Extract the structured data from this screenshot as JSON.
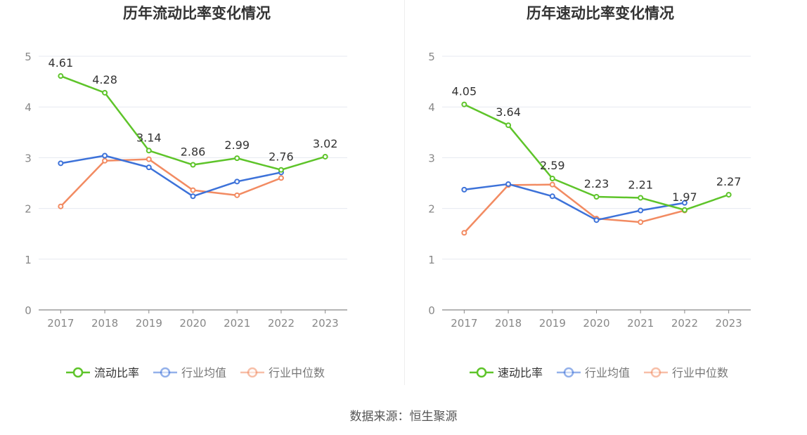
{
  "chart_data": [
    {
      "type": "line",
      "title": "历年流动比率变化情况",
      "categories": [
        "2017",
        "2018",
        "2019",
        "2020",
        "2021",
        "2022",
        "2023"
      ],
      "ylim": [
        0,
        5
      ],
      "yticks": [
        "0",
        "1",
        "2",
        "3",
        "4",
        "5"
      ],
      "grid": true,
      "legend_position": "bottom-center",
      "series": [
        {
          "name": "流动比率",
          "color": "#5ec42a",
          "values": [
            4.61,
            4.28,
            3.14,
            2.86,
            2.99,
            2.76,
            3.02
          ],
          "labels": [
            "4.61",
            "4.28",
            "3.14",
            "2.86",
            "2.99",
            "2.76",
            "3.02"
          ]
        },
        {
          "name": "行业均值",
          "color": "#3d72d9",
          "values": [
            2.89,
            3.04,
            2.81,
            2.24,
            2.53,
            2.71,
            null
          ]
        },
        {
          "name": "行业中位数",
          "color": "#f28b62",
          "values": [
            2.04,
            2.94,
            2.97,
            2.36,
            2.26,
            2.6,
            null
          ]
        }
      ]
    },
    {
      "type": "line",
      "title": "历年速动比率变化情况",
      "categories": [
        "2017",
        "2018",
        "2019",
        "2020",
        "2021",
        "2022",
        "2023"
      ],
      "ylim": [
        0,
        5
      ],
      "yticks": [
        "0",
        "1",
        "2",
        "3",
        "4",
        "5"
      ],
      "grid": true,
      "legend_position": "bottom-center",
      "series": [
        {
          "name": "速动比率",
          "color": "#5ec42a",
          "values": [
            4.05,
            3.64,
            2.59,
            2.23,
            2.21,
            1.97,
            2.27
          ],
          "labels": [
            "4.05",
            "3.64",
            "2.59",
            "2.23",
            "2.21",
            "1.97",
            "2.27"
          ]
        },
        {
          "name": "行业均值",
          "color": "#3d72d9",
          "values": [
            2.37,
            2.48,
            2.24,
            1.77,
            1.96,
            2.11,
            null
          ]
        },
        {
          "name": "行业中位数",
          "color": "#f28b62",
          "values": [
            1.52,
            2.46,
            2.47,
            1.8,
            1.73,
            1.96,
            null
          ]
        }
      ]
    }
  ],
  "footer": {
    "source": "数据来源：恒生聚源"
  }
}
